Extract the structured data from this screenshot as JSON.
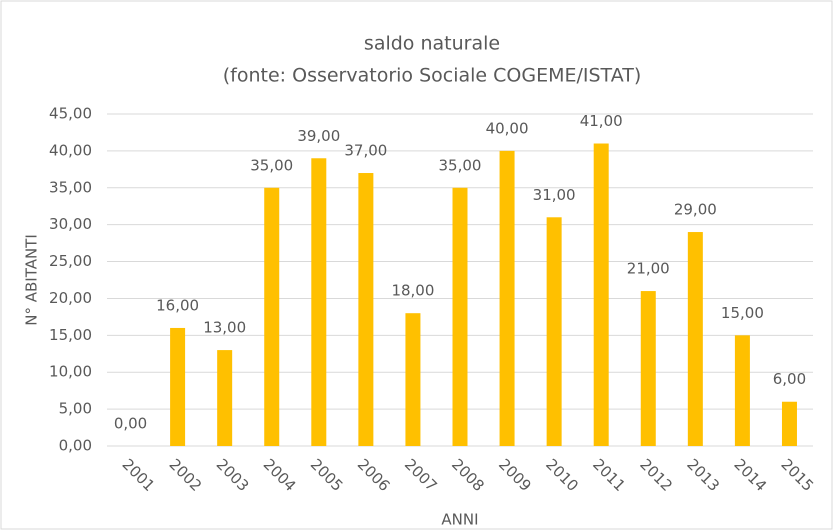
{
  "chart_data": {
    "type": "bar",
    "title": "saldo naturale",
    "subtitle": "(fonte: Osservatorio Sociale COGEME/ISTAT)",
    "x_label": "ANNI",
    "y_label": "N° ABITANTI",
    "categories": [
      "2001",
      "2002",
      "2003",
      "2004",
      "2005",
      "2006",
      "2007",
      "2008",
      "2009",
      "2010",
      "2011",
      "2012",
      "2013",
      "2014",
      "2015"
    ],
    "values": [
      0,
      16,
      13,
      35,
      39,
      37,
      18,
      35,
      40,
      31,
      41,
      21,
      29,
      15,
      6
    ],
    "value_labels": [
      "0,00",
      "16,00",
      "13,00",
      "35,00",
      "39,00",
      "37,00",
      "18,00",
      "35,00",
      "40,00",
      "31,00",
      "41,00",
      "21,00",
      "29,00",
      "15,00",
      "6,00"
    ],
    "color": "#ffc000",
    "ylim": [
      0,
      45
    ],
    "yticks": [
      {
        "value": 0,
        "label": "0,00"
      },
      {
        "value": 5,
        "label": "5,00"
      },
      {
        "value": 10,
        "label": "10,00"
      },
      {
        "value": 15,
        "label": "15,00"
      },
      {
        "value": 20,
        "label": "20,00"
      },
      {
        "value": 25,
        "label": "25,00"
      },
      {
        "value": 30,
        "label": "30,00"
      },
      {
        "value": 35,
        "label": "35,00"
      },
      {
        "value": 40,
        "label": "40,00"
      },
      {
        "value": 45,
        "label": "45,00"
      }
    ],
    "grid": true
  }
}
